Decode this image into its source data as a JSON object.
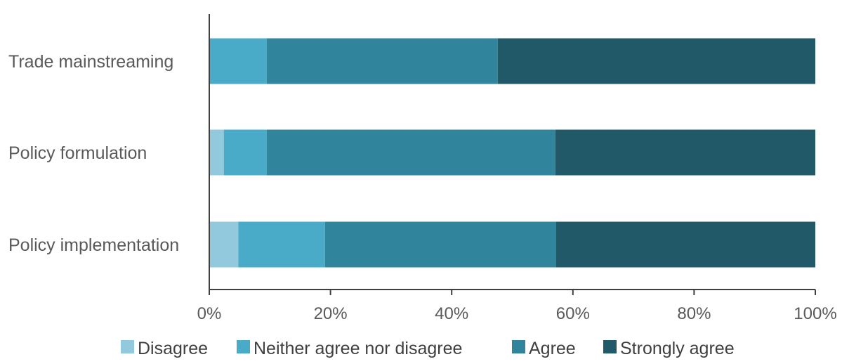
{
  "chart_data": {
    "type": "bar",
    "orientation": "horizontal",
    "stacked": true,
    "normalized_percent": true,
    "categories": [
      "Trade mainstreaming",
      "Policy formulation",
      "Policy implementation"
    ],
    "series": [
      {
        "name": "Disagree",
        "color": "#92c9dc",
        "values": [
          0,
          2.4,
          4.8
        ]
      },
      {
        "name": "Neither agree nor disagree",
        "color": "#4aabc8",
        "values": [
          9.5,
          7.1,
          14.3
        ]
      },
      {
        "name": "Agree",
        "color": "#30849c",
        "values": [
          38.1,
          47.6,
          38.1
        ]
      },
      {
        "name": "Strongly agree",
        "color": "#215968",
        "values": [
          52.4,
          42.9,
          42.8
        ]
      }
    ],
    "x_ticks": [
      "0%",
      "20%",
      "40%",
      "60%",
      "80%",
      "100%"
    ],
    "xlim": [
      0,
      100
    ],
    "grid": false,
    "legend_position": "bottom",
    "title": "",
    "xlabel": "",
    "ylabel": ""
  }
}
